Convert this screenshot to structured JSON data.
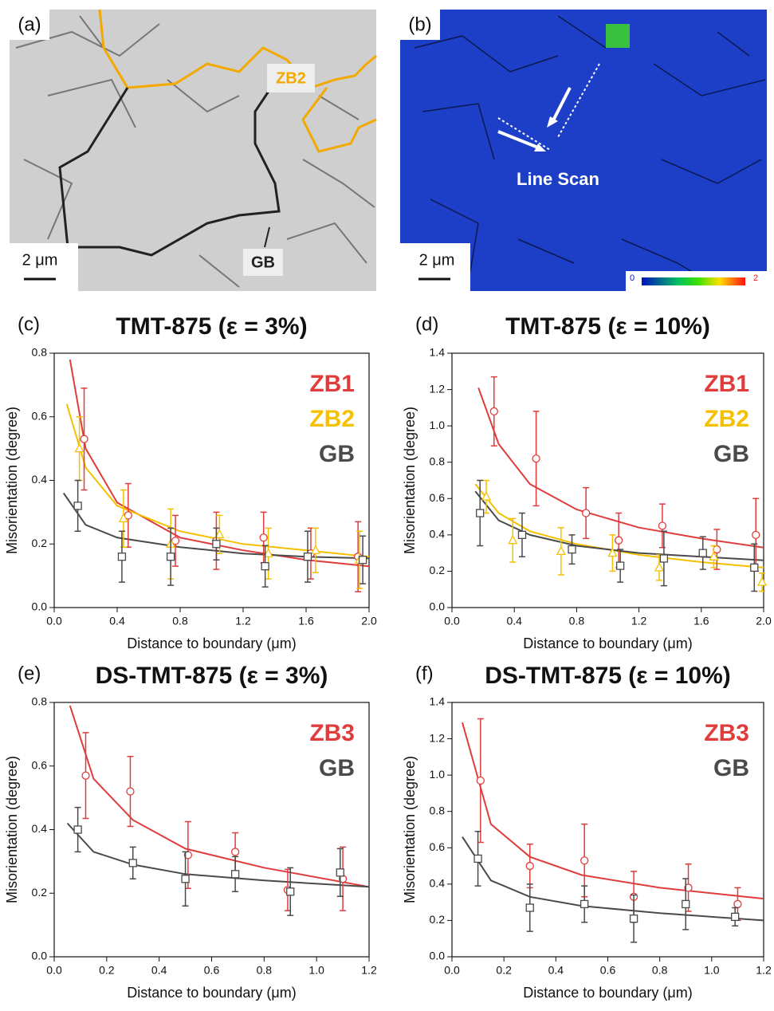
{
  "images": [
    {
      "label": "(a)",
      "annotations": [
        "ZB2",
        "GB"
      ],
      "scale": "2 μm"
    },
    {
      "label": "(b)",
      "annotations": [
        "Line Scan"
      ],
      "scale": "2 μm",
      "colorbar_range": [
        0,
        2
      ]
    }
  ],
  "chart_data": [
    {
      "type": "scatter",
      "panel": "(c)",
      "title": "TMT-875 (ε = 3%)",
      "x_label": "Distance to boundary (μm)",
      "y_label": "Misorientation (degree)",
      "xlim": [
        0,
        2
      ],
      "xticks": [
        {
          "value": 0,
          "label": "0.0"
        },
        0.4,
        0.8,
        1.2,
        1.6,
        {
          "value": 2,
          "label": "2.0"
        }
      ],
      "ylim": [
        0,
        0.8
      ],
      "yticks": [
        {
          "value": 0,
          "label": "0.0"
        },
        0.2,
        0.4,
        0.6,
        0.8
      ],
      "series": [
        {
          "name": "ZB1",
          "color": "#e03c3c",
          "marker": "circle",
          "x": [
            0.19,
            0.47,
            0.77,
            1.03,
            1.33,
            1.63,
            1.93
          ],
          "values": [
            0.53,
            0.29,
            0.21,
            0.21,
            0.22,
            0.17,
            0.16
          ],
          "errors": [
            0.16,
            0.1,
            0.08,
            0.09,
            0.08,
            0.08,
            0.11
          ],
          "fit_x": [
            0.1,
            0.2,
            0.4,
            0.8,
            1.2,
            1.6,
            2.0
          ],
          "fit_values": [
            0.78,
            0.5,
            0.33,
            0.22,
            0.18,
            0.15,
            0.13
          ]
        },
        {
          "name": "ZB2",
          "color": "#f5c000",
          "marker": "triangle",
          "x": [
            0.16,
            0.44,
            0.74,
            1.05,
            1.36,
            1.66,
            1.94
          ],
          "values": [
            0.5,
            0.28,
            0.2,
            0.23,
            0.17,
            0.18,
            0.15
          ],
          "errors": [
            0.1,
            0.09,
            0.11,
            0.06,
            0.08,
            0.07,
            0.09
          ],
          "fit_x": [
            0.08,
            0.2,
            0.4,
            0.8,
            1.2,
            1.6,
            2.0
          ],
          "fit_values": [
            0.64,
            0.44,
            0.32,
            0.24,
            0.2,
            0.18,
            0.16
          ]
        },
        {
          "name": "GB",
          "color": "#4a4a4a",
          "marker": "square",
          "x": [
            0.15,
            0.43,
            0.74,
            1.03,
            1.34,
            1.61,
            1.96
          ],
          "values": [
            0.32,
            0.16,
            0.16,
            0.2,
            0.13,
            0.16,
            0.15
          ],
          "errors": [
            0.08,
            0.08,
            0.09,
            0.05,
            0.065,
            0.08,
            0.075
          ],
          "fit_x": [
            0.06,
            0.2,
            0.4,
            0.8,
            1.2,
            1.6,
            2.0
          ],
          "fit_values": [
            0.36,
            0.26,
            0.22,
            0.19,
            0.17,
            0.16,
            0.155
          ]
        }
      ]
    },
    {
      "type": "scatter",
      "panel": "(d)",
      "title": "TMT-875 (ε = 10%)",
      "x_label": "Distance to boundary (μm)",
      "y_label": "Misorientation (degree)",
      "xlim": [
        0,
        2
      ],
      "xticks": [
        {
          "value": 0,
          "label": "0.0"
        },
        0.4,
        0.8,
        1.2,
        1.6,
        {
          "value": 2,
          "label": "2.0"
        }
      ],
      "ylim": [
        0,
        1.4
      ],
      "yticks": [
        {
          "value": 0,
          "label": "0.0"
        },
        0.2,
        0.4,
        0.6,
        0.8,
        {
          "value": 1,
          "label": "1.0"
        },
        1.2,
        1.4
      ],
      "series": [
        {
          "name": "ZB1",
          "color": "#e03c3c",
          "marker": "circle",
          "x": [
            0.27,
            0.54,
            0.86,
            1.07,
            1.35,
            1.7,
            1.95
          ],
          "values": [
            1.08,
            0.82,
            0.52,
            0.37,
            0.45,
            0.32,
            0.4
          ],
          "errors": [
            0.19,
            0.26,
            0.14,
            0.15,
            0.12,
            0.11,
            0.2
          ],
          "fit_x": [
            0.17,
            0.3,
            0.5,
            0.8,
            1.2,
            1.6,
            2.0
          ],
          "fit_values": [
            1.21,
            0.9,
            0.68,
            0.54,
            0.44,
            0.38,
            0.33
          ]
        },
        {
          "name": "ZB2",
          "color": "#f5c000",
          "marker": "triangle",
          "x": [
            0.22,
            0.39,
            0.7,
            1.03,
            1.33,
            1.68,
            1.99
          ],
          "values": [
            0.61,
            0.37,
            0.31,
            0.3,
            0.22,
            0.28,
            0.14
          ],
          "errors": [
            0.09,
            0.12,
            0.13,
            0.1,
            0.07,
            0.06,
            0.05
          ],
          "fit_x": [
            0.15,
            0.3,
            0.5,
            0.8,
            1.2,
            1.6,
            2.0
          ],
          "fit_values": [
            0.68,
            0.52,
            0.42,
            0.35,
            0.29,
            0.25,
            0.22
          ]
        },
        {
          "name": "GB",
          "color": "#4a4a4a",
          "marker": "square",
          "x": [
            0.18,
            0.45,
            0.77,
            1.08,
            1.36,
            1.61,
            1.94
          ],
          "values": [
            0.52,
            0.4,
            0.32,
            0.23,
            0.27,
            0.3,
            0.22
          ],
          "errors": [
            0.18,
            0.12,
            0.08,
            0.09,
            0.15,
            0.09,
            0.13
          ],
          "fit_x": [
            0.15,
            0.3,
            0.5,
            0.8,
            1.2,
            1.6,
            2.0
          ],
          "fit_values": [
            0.64,
            0.48,
            0.4,
            0.34,
            0.3,
            0.28,
            0.26
          ]
        }
      ]
    },
    {
      "type": "scatter",
      "panel": "(e)",
      "title": "DS-TMT-875 (ε = 3%)",
      "x_label": "Distance to boundary (μm)",
      "y_label": "Misorientation (degree)",
      "xlim": [
        0,
        1.2
      ],
      "xticks": [
        {
          "value": 0,
          "label": "0.0"
        },
        0.2,
        0.4,
        0.6,
        0.8,
        {
          "value": 1,
          "label": "1.0"
        },
        1.2
      ],
      "ylim": [
        0,
        0.8
      ],
      "yticks": [
        {
          "value": 0,
          "label": "0.0"
        },
        0.2,
        0.4,
        0.6,
        0.8
      ],
      "series": [
        {
          "name": "ZB3",
          "color": "#e03c3c",
          "marker": "circle",
          "x": [
            0.12,
            0.29,
            0.51,
            0.69,
            0.89,
            1.1
          ],
          "values": [
            0.57,
            0.52,
            0.32,
            0.33,
            0.21,
            0.245
          ],
          "errors": [
            0.135,
            0.11,
            0.105,
            0.06,
            0.065,
            0.1
          ],
          "fit_x": [
            0.06,
            0.15,
            0.3,
            0.5,
            0.8,
            1.2
          ],
          "fit_values": [
            0.79,
            0.56,
            0.43,
            0.34,
            0.28,
            0.22
          ]
        },
        {
          "name": "GB",
          "color": "#4a4a4a",
          "marker": "square",
          "x": [
            0.09,
            0.3,
            0.5,
            0.69,
            0.9,
            1.09
          ],
          "values": [
            0.4,
            0.295,
            0.245,
            0.26,
            0.205,
            0.265
          ],
          "errors": [
            0.07,
            0.05,
            0.085,
            0.055,
            0.075,
            0.075
          ],
          "fit_x": [
            0.05,
            0.15,
            0.3,
            0.5,
            0.8,
            1.2
          ],
          "fit_values": [
            0.42,
            0.33,
            0.29,
            0.26,
            0.24,
            0.22
          ]
        }
      ]
    },
    {
      "type": "scatter",
      "panel": "(f)",
      "title": "DS-TMT-875 (ε = 10%)",
      "x_label": "Distance to boundary (μm)",
      "y_label": "Misorientation (degree)",
      "xlim": [
        0,
        1.2
      ],
      "xticks": [
        {
          "value": 0,
          "label": "0.0"
        },
        0.2,
        0.4,
        0.6,
        0.8,
        {
          "value": 1,
          "label": "1.0"
        },
        1.2
      ],
      "ylim": [
        0,
        1.4
      ],
      "yticks": [
        {
          "value": 0,
          "label": "0.0"
        },
        0.2,
        0.4,
        0.6,
        0.8,
        {
          "value": 1,
          "label": "1.0"
        },
        1.2,
        1.4
      ],
      "series": [
        {
          "name": "ZB3",
          "color": "#e03c3c",
          "marker": "circle",
          "x": [
            0.11,
            0.3,
            0.51,
            0.7,
            0.91,
            1.1
          ],
          "values": [
            0.97,
            0.5,
            0.53,
            0.33,
            0.38,
            0.29
          ],
          "errors": [
            0.34,
            0.12,
            0.2,
            0.14,
            0.13,
            0.09
          ],
          "fit_x": [
            0.04,
            0.15,
            0.3,
            0.5,
            0.8,
            1.2
          ],
          "fit_values": [
            1.29,
            0.73,
            0.55,
            0.45,
            0.38,
            0.32
          ]
        },
        {
          "name": "GB",
          "color": "#4a4a4a",
          "marker": "square",
          "x": [
            0.1,
            0.3,
            0.51,
            0.7,
            0.9,
            1.09
          ],
          "values": [
            0.54,
            0.27,
            0.29,
            0.21,
            0.29,
            0.22
          ],
          "errors": [
            0.15,
            0.13,
            0.1,
            0.13,
            0.14,
            0.05
          ],
          "fit_x": [
            0.04,
            0.15,
            0.3,
            0.5,
            0.8,
            1.2
          ],
          "fit_values": [
            0.66,
            0.42,
            0.33,
            0.28,
            0.24,
            0.2
          ]
        }
      ]
    }
  ]
}
